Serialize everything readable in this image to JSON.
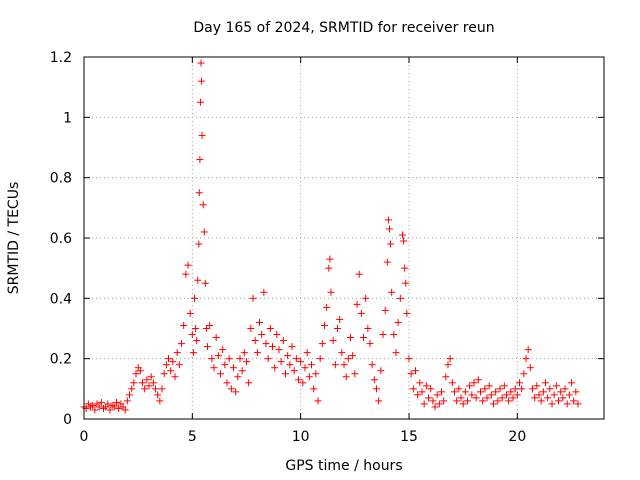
{
  "chart_data": {
    "type": "scatter",
    "title": "Day 165 of 2024, SRMTID for receiver reun",
    "xlabel": "GPS time / hours",
    "ylabel": "SRMTID / TECUs",
    "xlim": [
      0,
      24
    ],
    "ylim": [
      0,
      1.2
    ],
    "xticks": [
      0,
      5,
      10,
      15,
      20
    ],
    "xtick_labels": [
      "0",
      "5",
      "10",
      "15",
      "20"
    ],
    "yticks": [
      0,
      0.2,
      0.4,
      0.6,
      0.8,
      1.0,
      1.2
    ],
    "ytick_labels": [
      "0",
      "0.2",
      "0.4",
      "0.6",
      "0.8",
      "1",
      "1.2"
    ],
    "grid": true,
    "marker": "+",
    "color": "#ff0000",
    "series": [
      {
        "name": "SRMTID",
        "points": [
          [
            0.0,
            0.04
          ],
          [
            0.1,
            0.035
          ],
          [
            0.2,
            0.05
          ],
          [
            0.3,
            0.04
          ],
          [
            0.4,
            0.045
          ],
          [
            0.5,
            0.03
          ],
          [
            0.6,
            0.05
          ],
          [
            0.7,
            0.04
          ],
          [
            0.8,
            0.055
          ],
          [
            0.9,
            0.035
          ],
          [
            1.0,
            0.04
          ],
          [
            1.1,
            0.05
          ],
          [
            1.2,
            0.03
          ],
          [
            1.3,
            0.045
          ],
          [
            1.4,
            0.04
          ],
          [
            1.5,
            0.055
          ],
          [
            1.6,
            0.035
          ],
          [
            1.7,
            0.05
          ],
          [
            1.8,
            0.04
          ],
          [
            1.9,
            0.03
          ],
          [
            2.0,
            0.06
          ],
          [
            2.1,
            0.08
          ],
          [
            2.2,
            0.1
          ],
          [
            2.3,
            0.12
          ],
          [
            2.4,
            0.15
          ],
          [
            2.5,
            0.17
          ],
          [
            2.6,
            0.16
          ],
          [
            2.7,
            0.12
          ],
          [
            2.8,
            0.1
          ],
          [
            2.9,
            0.13
          ],
          [
            3.0,
            0.11
          ],
          [
            3.1,
            0.14
          ],
          [
            3.2,
            0.12
          ],
          [
            3.3,
            0.1
          ],
          [
            3.4,
            0.08
          ],
          [
            3.5,
            0.06
          ],
          [
            3.6,
            0.1
          ],
          [
            3.7,
            0.15
          ],
          [
            3.8,
            0.18
          ],
          [
            3.9,
            0.2
          ],
          [
            4.0,
            0.16
          ],
          [
            4.1,
            0.19
          ],
          [
            4.2,
            0.14
          ],
          [
            4.3,
            0.22
          ],
          [
            4.4,
            0.18
          ],
          [
            4.5,
            0.25
          ],
          [
            4.6,
            0.31
          ],
          [
            4.7,
            0.48
          ],
          [
            4.8,
            0.51
          ],
          [
            4.9,
            0.35
          ],
          [
            5.0,
            0.28
          ],
          [
            5.05,
            0.22
          ],
          [
            5.1,
            0.4
          ],
          [
            5.15,
            0.3
          ],
          [
            5.2,
            0.26
          ],
          [
            5.25,
            0.46
          ],
          [
            5.3,
            0.58
          ],
          [
            5.32,
            0.75
          ],
          [
            5.35,
            0.86
          ],
          [
            5.38,
            1.05
          ],
          [
            5.4,
            1.18
          ],
          [
            5.42,
            1.12
          ],
          [
            5.45,
            0.94
          ],
          [
            5.5,
            0.71
          ],
          [
            5.55,
            0.62
          ],
          [
            5.6,
            0.45
          ],
          [
            5.65,
            0.3
          ],
          [
            5.7,
            0.24
          ],
          [
            5.8,
            0.31
          ],
          [
            5.9,
            0.2
          ],
          [
            6.0,
            0.17
          ],
          [
            6.1,
            0.27
          ],
          [
            6.2,
            0.21
          ],
          [
            6.3,
            0.15
          ],
          [
            6.4,
            0.23
          ],
          [
            6.5,
            0.18
          ],
          [
            6.6,
            0.12
          ],
          [
            6.7,
            0.2
          ],
          [
            6.8,
            0.1
          ],
          [
            6.9,
            0.17
          ],
          [
            7.0,
            0.09
          ],
          [
            7.1,
            0.14
          ],
          [
            7.2,
            0.2
          ],
          [
            7.3,
            0.16
          ],
          [
            7.4,
            0.22
          ],
          [
            7.5,
            0.19
          ],
          [
            7.6,
            0.12
          ],
          [
            7.7,
            0.3
          ],
          [
            7.8,
            0.4
          ],
          [
            7.9,
            0.26
          ],
          [
            8.0,
            0.22
          ],
          [
            8.1,
            0.32
          ],
          [
            8.2,
            0.28
          ],
          [
            8.3,
            0.42
          ],
          [
            8.4,
            0.25
          ],
          [
            8.5,
            0.2
          ],
          [
            8.6,
            0.3
          ],
          [
            8.7,
            0.24
          ],
          [
            8.8,
            0.17
          ],
          [
            8.9,
            0.28
          ],
          [
            9.0,
            0.23
          ],
          [
            9.1,
            0.19
          ],
          [
            9.2,
            0.26
          ],
          [
            9.3,
            0.15
          ],
          [
            9.4,
            0.21
          ],
          [
            9.5,
            0.18
          ],
          [
            9.6,
            0.24
          ],
          [
            9.7,
            0.16
          ],
          [
            9.8,
            0.2
          ],
          [
            9.9,
            0.13
          ],
          [
            10.0,
            0.19
          ],
          [
            10.1,
            0.12
          ],
          [
            10.2,
            0.17
          ],
          [
            10.3,
            0.22
          ],
          [
            10.4,
            0.14
          ],
          [
            10.5,
            0.18
          ],
          [
            10.6,
            0.1
          ],
          [
            10.7,
            0.15
          ],
          [
            10.8,
            0.06
          ],
          [
            10.9,
            0.2
          ],
          [
            11.0,
            0.25
          ],
          [
            11.1,
            0.31
          ],
          [
            11.2,
            0.37
          ],
          [
            11.3,
            0.5
          ],
          [
            11.35,
            0.53
          ],
          [
            11.4,
            0.42
          ],
          [
            11.5,
            0.26
          ],
          [
            11.6,
            0.18
          ],
          [
            11.7,
            0.3
          ],
          [
            11.8,
            0.33
          ],
          [
            11.9,
            0.22
          ],
          [
            12.0,
            0.18
          ],
          [
            12.1,
            0.14
          ],
          [
            12.2,
            0.2
          ],
          [
            12.3,
            0.27
          ],
          [
            12.4,
            0.21
          ],
          [
            12.5,
            0.15
          ],
          [
            12.6,
            0.38
          ],
          [
            12.7,
            0.48
          ],
          [
            12.8,
            0.35
          ],
          [
            12.9,
            0.27
          ],
          [
            13.0,
            0.4
          ],
          [
            13.1,
            0.3
          ],
          [
            13.2,
            0.25
          ],
          [
            13.3,
            0.18
          ],
          [
            13.4,
            0.13
          ],
          [
            13.5,
            0.1
          ],
          [
            13.6,
            0.06
          ],
          [
            13.7,
            0.16
          ],
          [
            13.8,
            0.28
          ],
          [
            13.9,
            0.36
          ],
          [
            14.0,
            0.52
          ],
          [
            14.05,
            0.66
          ],
          [
            14.1,
            0.63
          ],
          [
            14.15,
            0.58
          ],
          [
            14.2,
            0.42
          ],
          [
            14.3,
            0.28
          ],
          [
            14.4,
            0.22
          ],
          [
            14.5,
            0.32
          ],
          [
            14.6,
            0.4
          ],
          [
            14.7,
            0.61
          ],
          [
            14.75,
            0.59
          ],
          [
            14.8,
            0.5
          ],
          [
            14.85,
            0.45
          ],
          [
            14.9,
            0.35
          ],
          [
            15.0,
            0.2
          ],
          [
            15.1,
            0.15
          ],
          [
            15.2,
            0.1
          ],
          [
            15.3,
            0.16
          ],
          [
            15.4,
            0.08
          ],
          [
            15.5,
            0.12
          ],
          [
            15.6,
            0.09
          ],
          [
            15.7,
            0.05
          ],
          [
            15.8,
            0.11
          ],
          [
            15.9,
            0.07
          ],
          [
            16.0,
            0.1
          ],
          [
            16.1,
            0.06
          ],
          [
            16.2,
            0.04
          ],
          [
            16.3,
            0.08
          ],
          [
            16.4,
            0.05
          ],
          [
            16.5,
            0.09
          ],
          [
            16.6,
            0.06
          ],
          [
            16.7,
            0.14
          ],
          [
            16.8,
            0.18
          ],
          [
            16.9,
            0.2
          ],
          [
            17.0,
            0.12
          ],
          [
            17.1,
            0.09
          ],
          [
            17.2,
            0.06
          ],
          [
            17.3,
            0.1
          ],
          [
            17.4,
            0.07
          ],
          [
            17.5,
            0.05
          ],
          [
            17.6,
            0.09
          ],
          [
            17.7,
            0.06
          ],
          [
            17.8,
            0.11
          ],
          [
            17.9,
            0.08
          ],
          [
            18.0,
            0.12
          ],
          [
            18.1,
            0.07
          ],
          [
            18.2,
            0.13
          ],
          [
            18.3,
            0.09
          ],
          [
            18.4,
            0.06
          ],
          [
            18.5,
            0.1
          ],
          [
            18.6,
            0.07
          ],
          [
            18.7,
            0.11
          ],
          [
            18.8,
            0.08
          ],
          [
            18.9,
            0.05
          ],
          [
            19.0,
            0.09
          ],
          [
            19.1,
            0.06
          ],
          [
            19.2,
            0.1
          ],
          [
            19.3,
            0.07
          ],
          [
            19.4,
            0.11
          ],
          [
            19.5,
            0.08
          ],
          [
            19.6,
            0.06
          ],
          [
            19.7,
            0.09
          ],
          [
            19.8,
            0.07
          ],
          [
            19.9,
            0.1
          ],
          [
            20.0,
            0.08
          ],
          [
            20.1,
            0.12
          ],
          [
            20.2,
            0.1
          ],
          [
            20.3,
            0.15
          ],
          [
            20.4,
            0.2
          ],
          [
            20.5,
            0.23
          ],
          [
            20.6,
            0.17
          ],
          [
            20.7,
            0.1
          ],
          [
            20.8,
            0.07
          ],
          [
            20.9,
            0.11
          ],
          [
            21.0,
            0.08
          ],
          [
            21.1,
            0.06
          ],
          [
            21.2,
            0.09
          ],
          [
            21.3,
            0.12
          ],
          [
            21.4,
            0.07
          ],
          [
            21.5,
            0.1
          ],
          [
            21.6,
            0.05
          ],
          [
            21.7,
            0.08
          ],
          [
            21.8,
            0.11
          ],
          [
            21.9,
            0.06
          ],
          [
            22.0,
            0.09
          ],
          [
            22.1,
            0.07
          ],
          [
            22.2,
            0.1
          ],
          [
            22.3,
            0.05
          ],
          [
            22.4,
            0.08
          ],
          [
            22.5,
            0.12
          ],
          [
            22.6,
            0.06
          ],
          [
            22.7,
            0.09
          ],
          [
            22.8,
            0.05
          ]
        ]
      }
    ]
  }
}
